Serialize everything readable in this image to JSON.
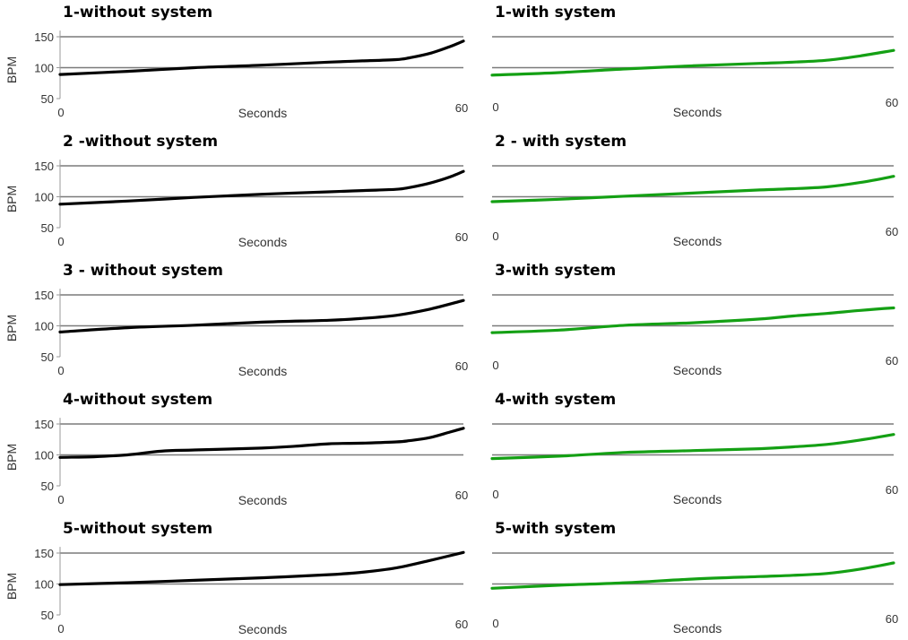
{
  "colors": {
    "without": "#000000",
    "with": "#14a014",
    "grid": "#7a7a7a"
  },
  "chart_data": [
    {
      "type": "line",
      "title": "1-without system",
      "xlabel": "Seconds",
      "ylabel": "BPM",
      "xlim": [
        0,
        60
      ],
      "ylim": [
        50,
        160
      ],
      "yticks": [
        50,
        100,
        150
      ],
      "xticks": [
        0,
        60
      ],
      "series": [
        {
          "x": [
            0,
            10,
            20,
            30,
            40,
            45,
            50,
            52,
            55,
            58,
            60
          ],
          "y": [
            89,
            94,
            100,
            104,
            109,
            111,
            113,
            116,
            123,
            134,
            143
          ],
          "color": "#000000"
        }
      ]
    },
    {
      "type": "line",
      "title": "1-with system",
      "xlabel": "Seconds",
      "ylabel": "",
      "xlim": [
        0,
        60
      ],
      "ylim": [
        50,
        160
      ],
      "yticks": [],
      "xticks": [
        0,
        60
      ],
      "series": [
        {
          "x": [
            0,
            10,
            20,
            30,
            40,
            45,
            50,
            55,
            60
          ],
          "y": [
            88,
            92,
            98,
            103,
            107,
            109,
            112,
            119,
            128
          ],
          "color": "#14a014"
        }
      ]
    },
    {
      "type": "line",
      "title": "2 -without system",
      "xlabel": "Seconds",
      "ylabel": "BPM",
      "xlim": [
        0,
        60
      ],
      "ylim": [
        50,
        160
      ],
      "yticks": [
        50,
        100,
        150
      ],
      "xticks": [
        0,
        60
      ],
      "series": [
        {
          "x": [
            0,
            10,
            20,
            30,
            40,
            45,
            50,
            52,
            55,
            58,
            60
          ],
          "y": [
            88,
            93,
            99,
            104,
            108,
            110,
            112,
            115,
            122,
            132,
            141
          ],
          "color": "#000000"
        }
      ]
    },
    {
      "type": "line",
      "title": "2 - with system",
      "xlabel": "Seconds",
      "ylabel": "",
      "xlim": [
        0,
        60
      ],
      "ylim": [
        50,
        160
      ],
      "yticks": [],
      "xticks": [
        0,
        60
      ],
      "series": [
        {
          "x": [
            0,
            10,
            20,
            30,
            40,
            45,
            50,
            55,
            60
          ],
          "y": [
            92,
            96,
            101,
            106,
            111,
            113,
            116,
            123,
            133
          ],
          "color": "#14a014"
        }
      ]
    },
    {
      "type": "line",
      "title": "3 - without system",
      "xlabel": "Seconds",
      "ylabel": "BPM",
      "xlim": [
        0,
        60
      ],
      "ylim": [
        50,
        160
      ],
      "yticks": [
        50,
        100,
        150
      ],
      "xticks": [
        0,
        60
      ],
      "series": [
        {
          "x": [
            0,
            10,
            20,
            30,
            40,
            45,
            50,
            55,
            60
          ],
          "y": [
            90,
            97,
            101,
            106,
            109,
            112,
            117,
            127,
            141
          ],
          "color": "#000000"
        }
      ]
    },
    {
      "type": "line",
      "title": "3-with system",
      "xlabel": "Seconds",
      "ylabel": "",
      "xlim": [
        0,
        60
      ],
      "ylim": [
        50,
        160
      ],
      "yticks": [],
      "xticks": [
        0,
        60
      ],
      "series": [
        {
          "x": [
            0,
            10,
            20,
            30,
            40,
            45,
            50,
            55,
            60
          ],
          "y": [
            89,
            93,
            101,
            105,
            111,
            116,
            120,
            125,
            129
          ],
          "color": "#14a014"
        }
      ]
    },
    {
      "type": "line",
      "title": "4-without system",
      "xlabel": "Seconds",
      "ylabel": "BPM",
      "xlim": [
        0,
        60
      ],
      "ylim": [
        50,
        160
      ],
      "yticks": [
        50,
        100,
        150
      ],
      "xticks": [
        0,
        60
      ],
      "series": [
        {
          "x": [
            0,
            5,
            10,
            15,
            20,
            30,
            35,
            40,
            45,
            50,
            52,
            55,
            58,
            60
          ],
          "y": [
            96,
            97,
            100,
            106,
            108,
            111,
            114,
            118,
            119,
            121,
            123,
            128,
            137,
            143
          ],
          "color": "#000000"
        }
      ]
    },
    {
      "type": "line",
      "title": "4-with system",
      "xlabel": "Seconds",
      "ylabel": "",
      "xlim": [
        0,
        60
      ],
      "ylim": [
        50,
        160
      ],
      "yticks": [],
      "xticks": [
        0,
        60
      ],
      "series": [
        {
          "x": [
            0,
            10,
            20,
            30,
            40,
            45,
            50,
            55,
            60
          ],
          "y": [
            94,
            98,
            104,
            107,
            110,
            113,
            117,
            124,
            133
          ],
          "color": "#14a014"
        }
      ]
    },
    {
      "type": "line",
      "title": "5-without system",
      "xlabel": "Seconds",
      "ylabel": "BPM",
      "xlim": [
        0,
        60
      ],
      "ylim": [
        50,
        160
      ],
      "yticks": [
        50,
        100,
        150
      ],
      "xticks": [
        0,
        60
      ],
      "series": [
        {
          "x": [
            0,
            10,
            20,
            30,
            40,
            45,
            50,
            55,
            60
          ],
          "y": [
            99,
            102,
            106,
            110,
            115,
            119,
            126,
            138,
            151
          ],
          "color": "#000000"
        }
      ]
    },
    {
      "type": "line",
      "title": "5-with system",
      "xlabel": "Seconds",
      "ylabel": "",
      "xlim": [
        0,
        60
      ],
      "ylim": [
        50,
        160
      ],
      "yticks": [],
      "xticks": [
        0,
        60
      ],
      "series": [
        {
          "x": [
            0,
            10,
            20,
            30,
            40,
            45,
            50,
            55,
            60
          ],
          "y": [
            93,
            98,
            102,
            108,
            112,
            114,
            117,
            124,
            134
          ],
          "color": "#14a014"
        }
      ]
    }
  ]
}
